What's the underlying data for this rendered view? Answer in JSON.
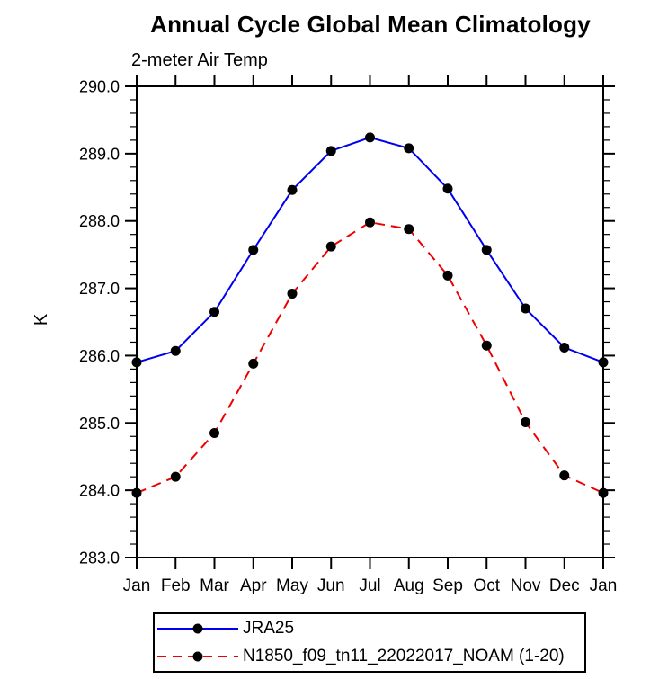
{
  "title": "Annual Cycle Global Mean Climatology",
  "subtitle": "2-meter Air Temp",
  "chart_data": {
    "type": "line",
    "categories": [
      "Jan",
      "Feb",
      "Mar",
      "Apr",
      "May",
      "Jun",
      "Jul",
      "Aug",
      "Sep",
      "Oct",
      "Nov",
      "Dec",
      "Jan"
    ],
    "series": [
      {
        "name": "JRA25",
        "line_color": "#0000ee",
        "line_style": "solid",
        "marker": "filled-circle",
        "marker_color": "#000000",
        "values": [
          285.9,
          286.07,
          286.65,
          287.57,
          288.46,
          289.04,
          289.24,
          289.08,
          288.48,
          287.57,
          286.7,
          286.12,
          285.9
        ]
      },
      {
        "name": "N1850_f09_tn11_22022017_NOAM (1-20)",
        "line_color": "#ee0000",
        "line_style": "dashed",
        "marker": "filled-circle",
        "marker_color": "#000000",
        "values": [
          283.96,
          284.2,
          284.85,
          285.88,
          286.92,
          287.62,
          287.98,
          287.88,
          287.19,
          286.15,
          285.01,
          284.22,
          283.96
        ]
      }
    ],
    "xlabel": "",
    "ylabel": "K",
    "ylim": [
      283.0,
      290.0
    ],
    "y_major_step": 1.0,
    "y_minor_step": 0.2,
    "y_tick_labels": [
      "283.0",
      "284.0",
      "285.0",
      "286.0",
      "287.0",
      "288.0",
      "289.0",
      "290.0"
    ],
    "grid": false,
    "axis_color": "#000000",
    "legend_position": "bottom"
  }
}
